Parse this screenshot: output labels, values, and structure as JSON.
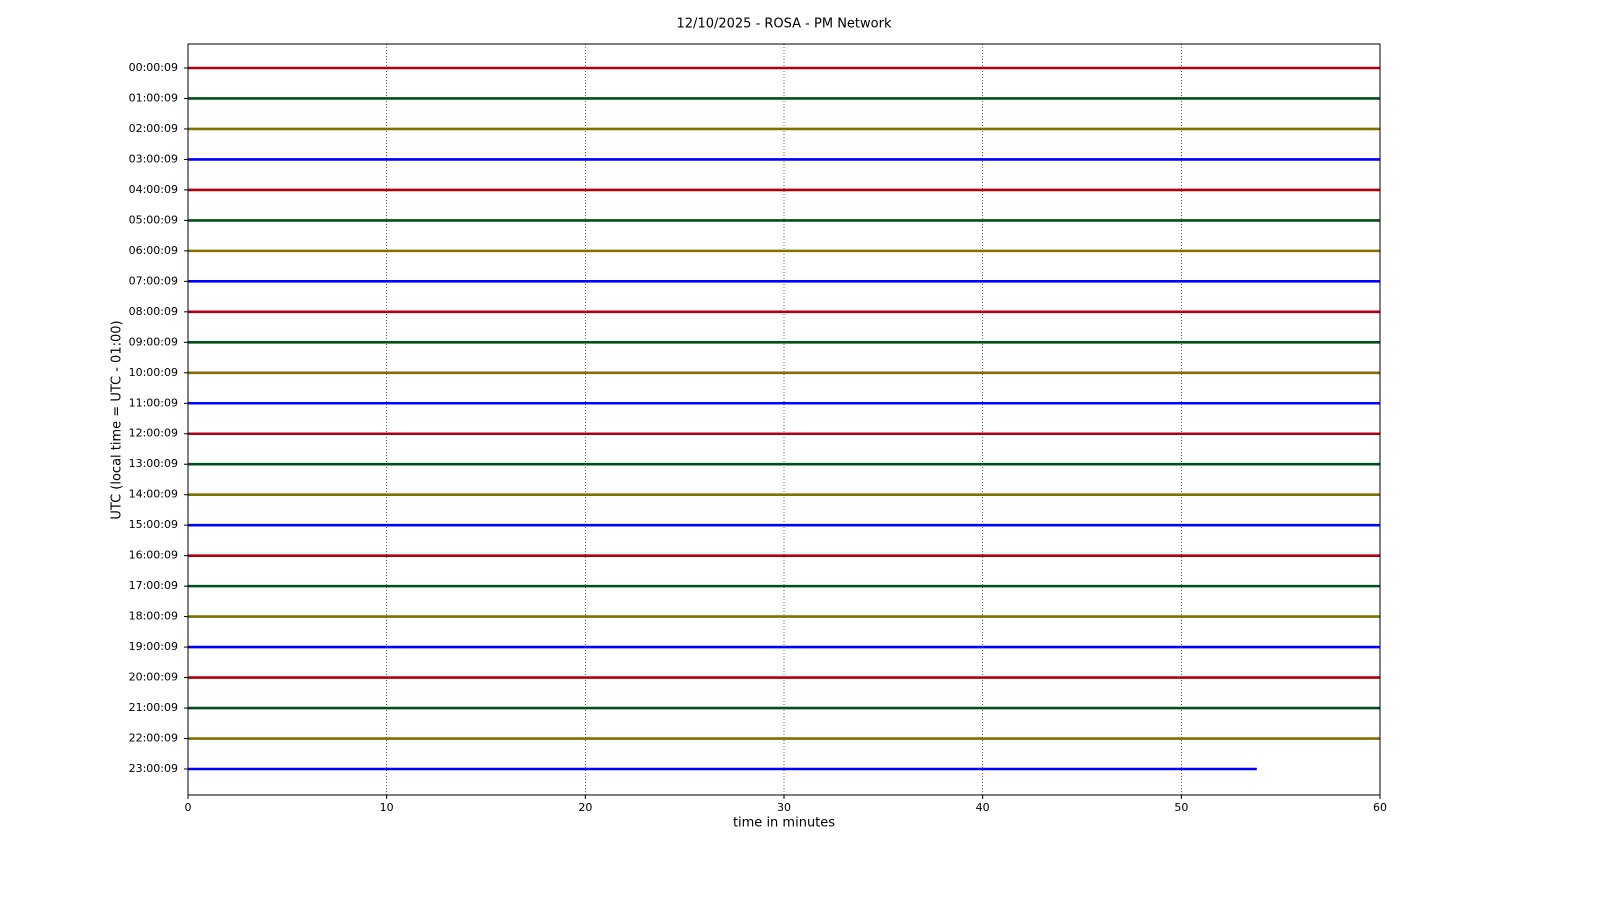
{
  "chart_data": {
    "type": "line",
    "title": "12/10/2025 - ROSA - PM Network",
    "x_label": "time in minutes",
    "y_label": "UTC (local time = UTC - 01:00)",
    "xlim": [
      0,
      60
    ],
    "xticks": [
      0,
      10,
      20,
      30,
      40,
      50,
      60
    ],
    "xgrid": true,
    "categories": [
      "00:00:09",
      "01:00:09",
      "02:00:09",
      "03:00:09",
      "04:00:09",
      "05:00:09",
      "06:00:09",
      "07:00:09",
      "08:00:09",
      "09:00:09",
      "10:00:09",
      "11:00:09",
      "12:00:09",
      "13:00:09",
      "14:00:09",
      "15:00:09",
      "16:00:09",
      "17:00:09",
      "18:00:09",
      "19:00:09",
      "20:00:09",
      "21:00:09",
      "22:00:09",
      "23:00:09"
    ],
    "series": [
      {
        "color": "#b0000f",
        "x": [
          0,
          60
        ]
      },
      {
        "color": "#00501a",
        "x": [
          0,
          60
        ]
      },
      {
        "color": "#7f7000",
        "x": [
          0,
          60
        ]
      },
      {
        "color": "#0000ff",
        "x": [
          0,
          60
        ]
      },
      {
        "color": "#b0000f",
        "x": [
          0,
          60
        ]
      },
      {
        "color": "#00501a",
        "x": [
          0,
          60
        ]
      },
      {
        "color": "#7f7000",
        "x": [
          0,
          60
        ]
      },
      {
        "color": "#0000ff",
        "x": [
          0,
          60
        ]
      },
      {
        "color": "#b0000f",
        "x": [
          0,
          60
        ]
      },
      {
        "color": "#00501a",
        "x": [
          0,
          60
        ]
      },
      {
        "color": "#7f7000",
        "x": [
          0,
          60
        ]
      },
      {
        "color": "#0000ff",
        "x": [
          0,
          60
        ]
      },
      {
        "color": "#b0000f",
        "x": [
          0,
          60
        ]
      },
      {
        "color": "#00501a",
        "x": [
          0,
          60
        ]
      },
      {
        "color": "#7f7000",
        "x": [
          0,
          60
        ]
      },
      {
        "color": "#0000ff",
        "x": [
          0,
          60
        ]
      },
      {
        "color": "#b0000f",
        "x": [
          0,
          60
        ]
      },
      {
        "color": "#00501a",
        "x": [
          0,
          60
        ]
      },
      {
        "color": "#7f7000",
        "x": [
          0,
          60
        ]
      },
      {
        "color": "#0000ff",
        "x": [
          0,
          60
        ]
      },
      {
        "color": "#b0000f",
        "x": [
          0,
          60
        ]
      },
      {
        "color": "#00501a",
        "x": [
          0,
          60
        ]
      },
      {
        "color": "#7f7000",
        "x": [
          0,
          60
        ]
      },
      {
        "color": "#0000ff",
        "x": [
          0,
          53.8
        ]
      }
    ]
  }
}
